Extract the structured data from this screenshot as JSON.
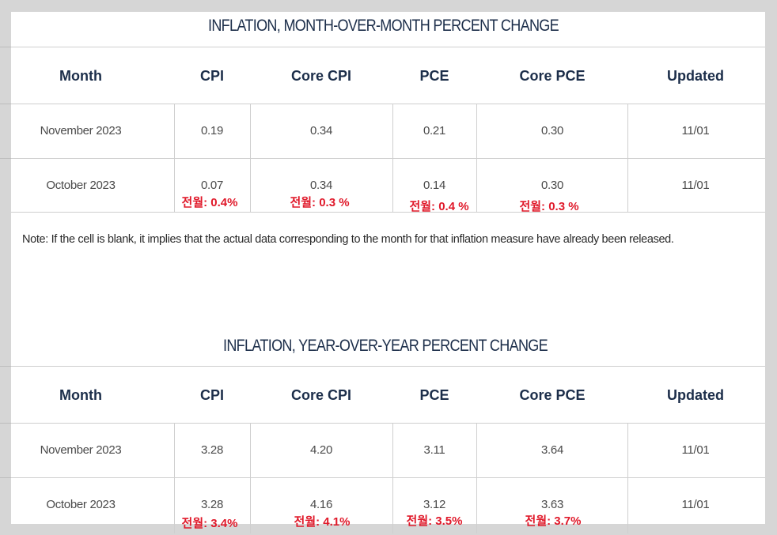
{
  "mom": {
    "title": "INFLATION, MONTH-OVER-MONTH PERCENT CHANGE",
    "headers": [
      "Month",
      "CPI",
      "Core CPI",
      "PCE",
      "Core PCE",
      "Updated"
    ],
    "rows": [
      [
        "November 2023",
        "0.19",
        "0.34",
        "0.21",
        "0.30",
        "11/01"
      ],
      [
        "October 2023",
        "0.07",
        "0.34",
        "0.14",
        "0.30",
        "11/01"
      ]
    ],
    "prev_notes": [
      "전월: 0.4%",
      "전월: 0.3 %",
      "전월: 0.4 %",
      "전월: 0.3 %"
    ]
  },
  "note": "Note: If the cell is blank, it implies that the actual data corresponding to the month for that inflation measure have already been released.",
  "yoy": {
    "title": "INFLATION, YEAR-OVER-YEAR PERCENT CHANGE",
    "headers": [
      "Month",
      "CPI",
      "Core CPI",
      "PCE",
      "Core PCE",
      "Updated"
    ],
    "rows": [
      [
        "November 2023",
        "3.28",
        "4.20",
        "3.11",
        "3.64",
        "11/01"
      ],
      [
        "October 2023",
        "3.28",
        "4.16",
        "3.12",
        "3.63",
        "11/01"
      ]
    ],
    "prev_notes": [
      "전월: 3.4%",
      "전월: 4.1%",
      "전월: 3.5%",
      "전월: 3.7%"
    ]
  },
  "colors": {
    "heading": "#1c2e4a",
    "prev_note": "#e0192a",
    "cell_text": "#4a4a4a"
  }
}
